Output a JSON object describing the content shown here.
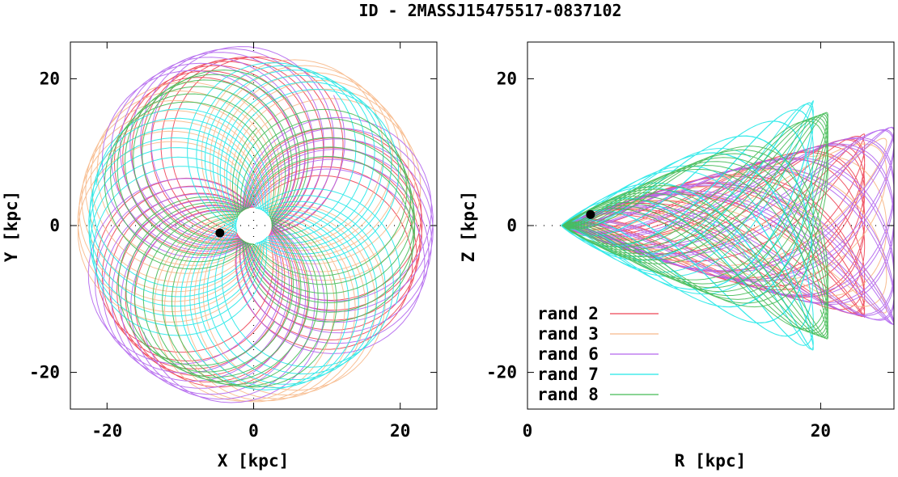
{
  "title": "ID - 2MASSJ15475517-0837102",
  "colors": {
    "rand 2": "#ee4455",
    "rand 3": "#f7b98a",
    "rand 6": "#b366ee",
    "rand 7": "#22e8e8",
    "rand 8": "#44bb55",
    "marker": "#000000"
  },
  "chart_data": [
    {
      "type": "line",
      "panel": "xy",
      "xlabel": "X [kpc]",
      "ylabel": "Y [kpc]",
      "xlim": [
        -25,
        25
      ],
      "ylim": [
        -25,
        25
      ],
      "xticks": [
        {
          "value": -20,
          "label": "-20"
        },
        {
          "value": 0,
          "label": "0"
        },
        {
          "value": 20,
          "label": "20"
        }
      ],
      "yticks": [
        {
          "value": 20,
          "label": "20"
        },
        {
          "value": 0,
          "label": "0"
        },
        {
          "value": -20,
          "label": "-20"
        }
      ],
      "marker": {
        "x": -4.6,
        "y": -1.0
      },
      "series": [
        {
          "name": "rand 2",
          "r_min": 2.5,
          "r_max": 23.0,
          "phase": 0.2
        },
        {
          "name": "rand 3",
          "r_min": 2.8,
          "r_max": 24.0,
          "phase": 1.1
        },
        {
          "name": "rand 6",
          "r_min": 2.6,
          "r_max": 24.5,
          "phase": 2.3
        },
        {
          "name": "rand 7",
          "r_min": 2.4,
          "r_max": 22.5,
          "phase": 3.4
        },
        {
          "name": "rand 8",
          "r_min": 2.5,
          "r_max": 22.0,
          "phase": 4.6
        }
      ]
    },
    {
      "type": "line",
      "panel": "rz",
      "xlabel": "R [kpc]",
      "ylabel": "Z [kpc]",
      "xlim": [
        0,
        25
      ],
      "ylim": [
        -25,
        25
      ],
      "xticks": [
        {
          "value": 0,
          "label": "0"
        },
        {
          "value": 20,
          "label": "20"
        }
      ],
      "yticks": [
        {
          "value": 20,
          "label": "20"
        },
        {
          "value": 0,
          "label": "0"
        },
        {
          "value": -20,
          "label": "-20"
        }
      ],
      "marker": {
        "x": 4.3,
        "y": 1.5
      },
      "legend": {
        "position": "bottom-left",
        "entries": [
          "rand 2",
          "rand 3",
          "rand 6",
          "rand 7",
          "rand 8"
        ]
      },
      "series": [
        {
          "name": "rand 2",
          "r_min": 2.4,
          "r_max": 23.0,
          "z_max": 12.5
        },
        {
          "name": "rand 3",
          "r_min": 2.6,
          "r_max": 24.5,
          "z_max": 12.0
        },
        {
          "name": "rand 6",
          "r_min": 2.5,
          "r_max": 25.0,
          "z_max": 13.5
        },
        {
          "name": "rand 7",
          "r_min": 2.3,
          "r_max": 19.5,
          "z_max": 17.0
        },
        {
          "name": "rand 8",
          "r_min": 2.4,
          "r_max": 20.5,
          "z_max": 15.5
        }
      ]
    }
  ]
}
